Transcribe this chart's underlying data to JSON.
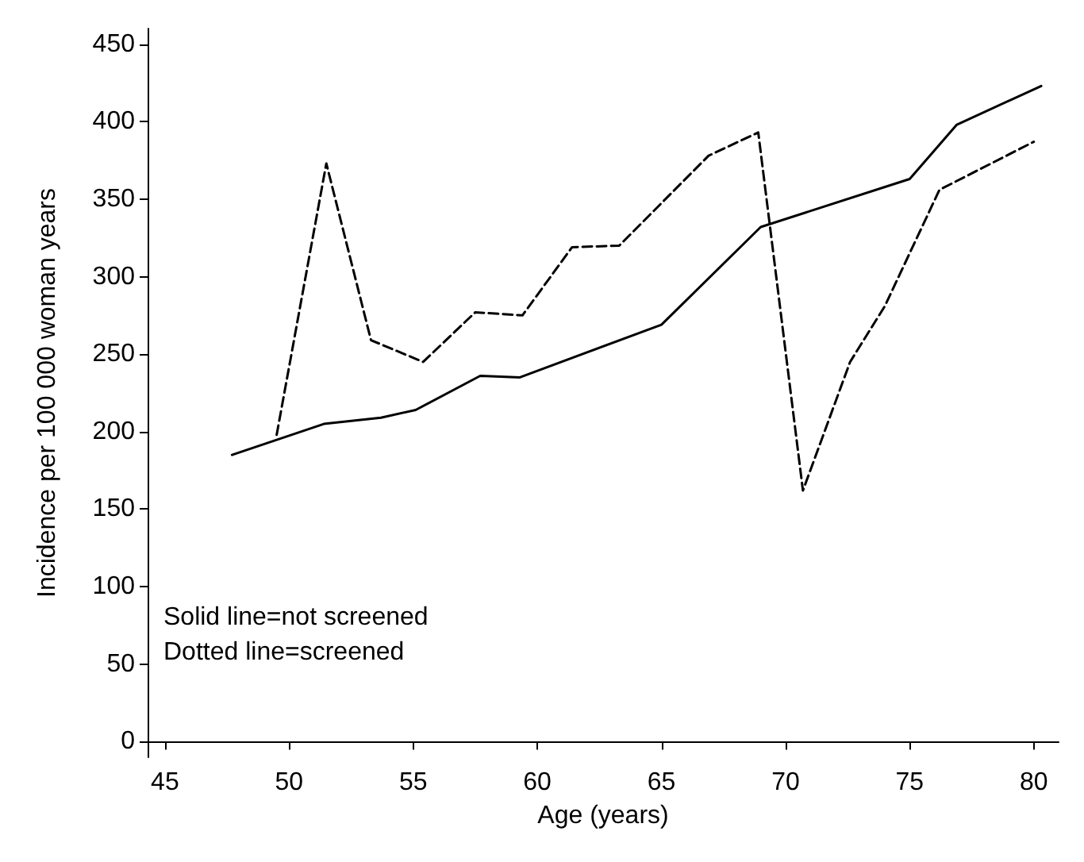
{
  "chart_data": {
    "type": "line",
    "xlabel": "Age (years)",
    "ylabel": "Incidence per 100 000 woman years",
    "xlim": [
      44.3,
      81
    ],
    "xticks": [
      45,
      50,
      55,
      60,
      65,
      70,
      75,
      80
    ],
    "ylim": [
      -10,
      460
    ],
    "yticks": [
      0,
      50,
      100,
      150,
      200,
      250,
      300,
      350,
      400,
      450
    ],
    "grid": false,
    "marker": "none",
    "annotations": [
      "Solid line=not screened",
      "Dotted line=screened"
    ],
    "series": [
      {
        "color": "#000000",
        "line_style": "solid",
        "x": [
          47.7,
          51.4,
          53.7,
          55.1,
          57.7,
          59.3,
          65,
          69,
          75,
          76.9,
          80.3
        ],
        "values": [
          185,
          205,
          209,
          214,
          236,
          235,
          269,
          332,
          363,
          398,
          423
        ]
      },
      {
        "color": "#000000",
        "line_style": "dashed",
        "x": [
          49.5,
          51.5,
          53.3,
          55.4,
          57.5,
          59.4,
          61.4,
          63.3,
          66.9,
          68.9,
          70.7,
          72.6,
          74,
          76.2,
          80
        ],
        "values": [
          198,
          373,
          259,
          245,
          277,
          275,
          319,
          320,
          378,
          393,
          162,
          245,
          281,
          356,
          387
        ]
      }
    ]
  }
}
